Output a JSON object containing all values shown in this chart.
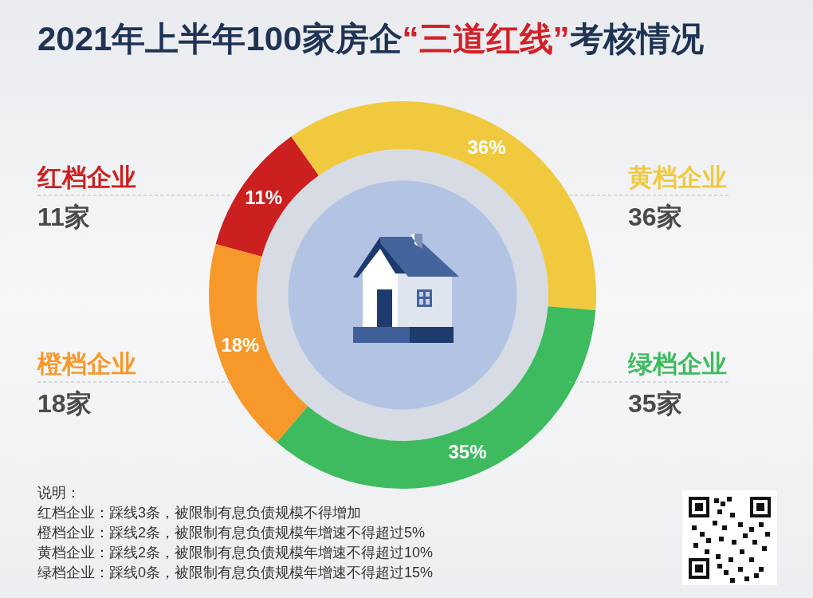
{
  "chart_data": {
    "type": "donut",
    "title": "2021年上半年100家房企“三道红线”考核情况",
    "categories": [
      "黄档企业",
      "绿档企业",
      "橙档企业",
      "红档企业"
    ],
    "values": [
      36,
      35,
      18,
      11
    ],
    "colors": [
      "#f0c93f",
      "#3dbb5e",
      "#f7982a",
      "#cc1f1f"
    ],
    "value_labels": [
      "36%",
      "35%",
      "18%",
      "11%"
    ],
    "annotations": [
      "36家",
      "35家",
      "18家",
      "11家",
      "说明：",
      "红档企业：踩线3条，被限制有息负债规模不得增加",
      "橙档企业：踩线2条，被限制有息负债规模年增速不得超过5%",
      "黄档企业：踩线2条，被限制有息负债规模年增速不得超过10%",
      "绿档企业：踩线0条，被限制有息负债规模年增速不得超过15%"
    ]
  }
}
